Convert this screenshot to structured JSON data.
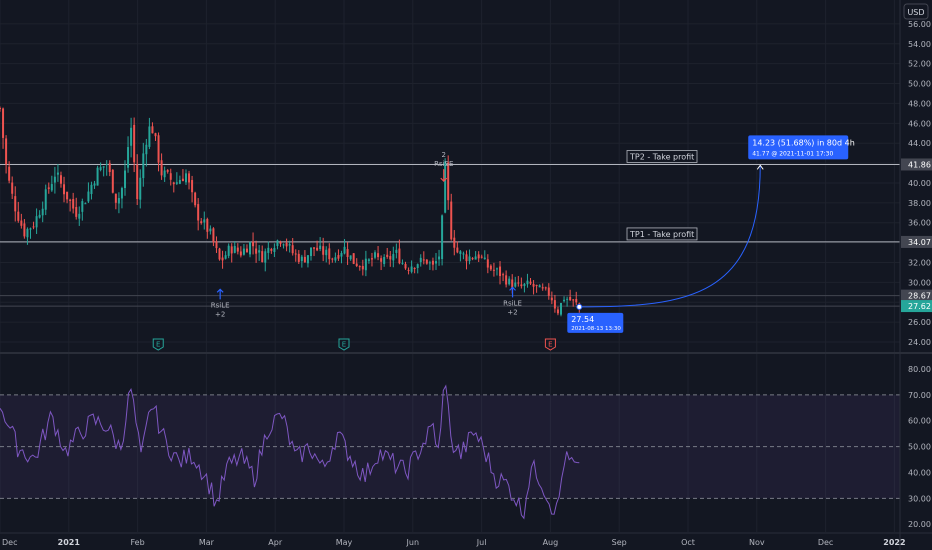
{
  "currency": "USD",
  "colors": {
    "background": "#131722",
    "grid": "#1e222d",
    "up": "#26a69a",
    "down": "#ef5350",
    "rsi_line": "#7e57c2",
    "rsi_band": "#7e57c2",
    "arrow": "#2962ff",
    "projection": "#2962ff",
    "text": "#b2b5be"
  },
  "price_axis": {
    "min": 23,
    "max": 58,
    "ticks": [
      "24.00",
      "26.00",
      "28.00",
      "30.00",
      "32.00",
      "34.00",
      "36.00",
      "38.00",
      "40.00",
      "42.00",
      "44.00",
      "46.00",
      "48.00",
      "50.00",
      "52.00",
      "54.00",
      "56.00"
    ],
    "tick_values": [
      24,
      26,
      28,
      30,
      32,
      34,
      36,
      38,
      40,
      42,
      44,
      46,
      48,
      50,
      52,
      54,
      56
    ]
  },
  "price_badges": [
    {
      "label": "41.86",
      "value": 41.86,
      "color": "#434651"
    },
    {
      "label": "34.07",
      "value": 34.07,
      "color": "#434651"
    },
    {
      "label": "28.67",
      "value": 28.67,
      "color": "#434651"
    },
    {
      "label": "27.62",
      "value": 27.62,
      "color": "#26a69a"
    }
  ],
  "rsi_axis": {
    "ticks": [
      "20.00",
      "30.00",
      "40.00",
      "50.00",
      "60.00",
      "70.00",
      "80.00"
    ],
    "tick_values": [
      20,
      30,
      40,
      50,
      60,
      70,
      80
    ],
    "band_upper": 70,
    "band_lower": 30,
    "middle": 50
  },
  "time_axis": {
    "labels": [
      "Dec",
      "2021",
      "Feb",
      "Mar",
      "Apr",
      "May",
      "Jun",
      "Jul",
      "Aug",
      "Sep",
      "Oct",
      "Nov",
      "Dec",
      "2022"
    ],
    "bold": [
      false,
      true,
      false,
      false,
      false,
      false,
      false,
      false,
      false,
      false,
      false,
      false,
      false,
      true
    ]
  },
  "horizontal_lines": [
    {
      "label": "TP2 - Take profit",
      "price": 41.86
    },
    {
      "label": "TP1 - Take profit",
      "price": 34.07
    },
    {
      "label": "",
      "price": 28.67
    },
    {
      "label": "",
      "price": 27.62
    }
  ],
  "signals": [
    {
      "type": "long",
      "name": "RsiLE",
      "qty": "+2",
      "month_pos": 3.2,
      "price": 29.3
    },
    {
      "type": "long",
      "name": "RsiLE",
      "qty": "+2",
      "month_pos": 7.45,
      "price": 29.5
    },
    {
      "type": "short",
      "name": "RsiSE",
      "qty": "2",
      "month_pos": 6.45,
      "price": 42.6
    }
  ],
  "earnings": [
    {
      "label": "E",
      "month_pos": 2.3,
      "color": "#26a69a"
    },
    {
      "label": "E",
      "month_pos": 5.0,
      "color": "#26a69a"
    },
    {
      "label": "E",
      "month_pos": 8.0,
      "color": "#ef5350"
    }
  ],
  "projection": {
    "header": "14.23 (51.68%) in 80d 4h",
    "detail": "41.77 @ 2021-11-01  17:30",
    "start_label": "27.54",
    "start_detail": "2021-08-13 13:30",
    "start_price": 27.54,
    "end_price": 41.77,
    "start_month_pos": 8.42,
    "end_month_pos": 11.05
  },
  "chart_data": {
    "type": "candlestick",
    "title": "",
    "xlabel": "",
    "ylabel": "",
    "ylim": [
      23,
      58
    ],
    "x_range": [
      "2020-12-01",
      "2022-01-01"
    ],
    "anchors": [
      {
        "month_pos": 0.0,
        "price": 47.5
      },
      {
        "month_pos": 0.1,
        "price": 41
      },
      {
        "month_pos": 0.2,
        "price": 38
      },
      {
        "month_pos": 0.35,
        "price": 35
      },
      {
        "month_pos": 0.5,
        "price": 36
      },
      {
        "month_pos": 0.65,
        "price": 38.5
      },
      {
        "month_pos": 0.8,
        "price": 41
      },
      {
        "month_pos": 0.95,
        "price": 39
      },
      {
        "month_pos": 1.1,
        "price": 37
      },
      {
        "month_pos": 1.25,
        "price": 38.5
      },
      {
        "month_pos": 1.4,
        "price": 41
      },
      {
        "month_pos": 1.55,
        "price": 42
      },
      {
        "month_pos": 1.7,
        "price": 38
      },
      {
        "month_pos": 1.8,
        "price": 40
      },
      {
        "month_pos": 1.9,
        "price": 46
      },
      {
        "month_pos": 2.0,
        "price": 38
      },
      {
        "month_pos": 2.1,
        "price": 44
      },
      {
        "month_pos": 2.2,
        "price": 46
      },
      {
        "month_pos": 2.35,
        "price": 41
      },
      {
        "month_pos": 2.55,
        "price": 40
      },
      {
        "month_pos": 2.7,
        "price": 41
      },
      {
        "month_pos": 2.85,
        "price": 37
      },
      {
        "month_pos": 3.05,
        "price": 35
      },
      {
        "month_pos": 3.2,
        "price": 32
      },
      {
        "month_pos": 3.35,
        "price": 33.5
      },
      {
        "month_pos": 3.5,
        "price": 33
      },
      {
        "month_pos": 3.65,
        "price": 34
      },
      {
        "month_pos": 3.8,
        "price": 32.5
      },
      {
        "month_pos": 3.95,
        "price": 33.8
      },
      {
        "month_pos": 4.1,
        "price": 34.5
      },
      {
        "month_pos": 4.25,
        "price": 33
      },
      {
        "month_pos": 4.4,
        "price": 32.2
      },
      {
        "month_pos": 4.55,
        "price": 33.5
      },
      {
        "month_pos": 4.7,
        "price": 33
      },
      {
        "month_pos": 4.85,
        "price": 32.5
      },
      {
        "month_pos": 5.0,
        "price": 33.5
      },
      {
        "month_pos": 5.15,
        "price": 32
      },
      {
        "month_pos": 5.3,
        "price": 31.8
      },
      {
        "month_pos": 5.45,
        "price": 32.5
      },
      {
        "month_pos": 5.6,
        "price": 32
      },
      {
        "month_pos": 5.75,
        "price": 33
      },
      {
        "month_pos": 5.9,
        "price": 31.5
      },
      {
        "month_pos": 6.05,
        "price": 32
      },
      {
        "month_pos": 6.2,
        "price": 32.2
      },
      {
        "month_pos": 6.3,
        "price": 31.5
      },
      {
        "month_pos": 6.4,
        "price": 33
      },
      {
        "month_pos": 6.47,
        "price": 41.5
      },
      {
        "month_pos": 6.55,
        "price": 35
      },
      {
        "month_pos": 6.65,
        "price": 33
      },
      {
        "month_pos": 6.8,
        "price": 32.5
      },
      {
        "month_pos": 6.95,
        "price": 32.8
      },
      {
        "month_pos": 7.1,
        "price": 31.5
      },
      {
        "month_pos": 7.25,
        "price": 31
      },
      {
        "month_pos": 7.4,
        "price": 30
      },
      {
        "month_pos": 7.55,
        "price": 29.5
      },
      {
        "month_pos": 7.7,
        "price": 29.8
      },
      {
        "month_pos": 7.85,
        "price": 29.2
      },
      {
        "month_pos": 8.0,
        "price": 28.8
      },
      {
        "month_pos": 8.1,
        "price": 27
      },
      {
        "month_pos": 8.2,
        "price": 28.5
      },
      {
        "month_pos": 8.3,
        "price": 28.2
      },
      {
        "month_pos": 8.42,
        "price": 27.6
      }
    ],
    "rsi": {
      "name": "RSI",
      "anchors": [
        {
          "month_pos": 0.0,
          "value": 67
        },
        {
          "month_pos": 0.25,
          "value": 50
        },
        {
          "month_pos": 0.5,
          "value": 45
        },
        {
          "month_pos": 0.75,
          "value": 62
        },
        {
          "month_pos": 0.95,
          "value": 48
        },
        {
          "month_pos": 1.15,
          "value": 55
        },
        {
          "month_pos": 1.35,
          "value": 60
        },
        {
          "month_pos": 1.55,
          "value": 58
        },
        {
          "month_pos": 1.75,
          "value": 49
        },
        {
          "month_pos": 1.9,
          "value": 73
        },
        {
          "month_pos": 2.05,
          "value": 45
        },
        {
          "month_pos": 2.2,
          "value": 67
        },
        {
          "month_pos": 2.4,
          "value": 52
        },
        {
          "month_pos": 2.6,
          "value": 44
        },
        {
          "month_pos": 2.8,
          "value": 47
        },
        {
          "month_pos": 3.0,
          "value": 38
        },
        {
          "month_pos": 3.15,
          "value": 28
        },
        {
          "month_pos": 3.3,
          "value": 42
        },
        {
          "month_pos": 3.5,
          "value": 46
        },
        {
          "month_pos": 3.7,
          "value": 38
        },
        {
          "month_pos": 3.9,
          "value": 58
        },
        {
          "month_pos": 4.1,
          "value": 62
        },
        {
          "month_pos": 4.3,
          "value": 45
        },
        {
          "month_pos": 4.5,
          "value": 50
        },
        {
          "month_pos": 4.7,
          "value": 41
        },
        {
          "month_pos": 4.9,
          "value": 55
        },
        {
          "month_pos": 5.1,
          "value": 46
        },
        {
          "month_pos": 5.3,
          "value": 38
        },
        {
          "month_pos": 5.5,
          "value": 48
        },
        {
          "month_pos": 5.7,
          "value": 44
        },
        {
          "month_pos": 5.9,
          "value": 40
        },
        {
          "month_pos": 6.1,
          "value": 49
        },
        {
          "month_pos": 6.3,
          "value": 58
        },
        {
          "month_pos": 6.38,
          "value": 46
        },
        {
          "month_pos": 6.47,
          "value": 80
        },
        {
          "month_pos": 6.55,
          "value": 52
        },
        {
          "month_pos": 6.7,
          "value": 47
        },
        {
          "month_pos": 6.9,
          "value": 56
        },
        {
          "month_pos": 7.05,
          "value": 48
        },
        {
          "month_pos": 7.2,
          "value": 38
        },
        {
          "month_pos": 7.35,
          "value": 36
        },
        {
          "month_pos": 7.5,
          "value": 30
        },
        {
          "month_pos": 7.6,
          "value": 24
        },
        {
          "month_pos": 7.72,
          "value": 42
        },
        {
          "month_pos": 7.85,
          "value": 38
        },
        {
          "month_pos": 8.0,
          "value": 28
        },
        {
          "month_pos": 8.1,
          "value": 25
        },
        {
          "month_pos": 8.2,
          "value": 45
        },
        {
          "month_pos": 8.3,
          "value": 44
        },
        {
          "month_pos": 8.42,
          "value": 40
        }
      ]
    }
  }
}
